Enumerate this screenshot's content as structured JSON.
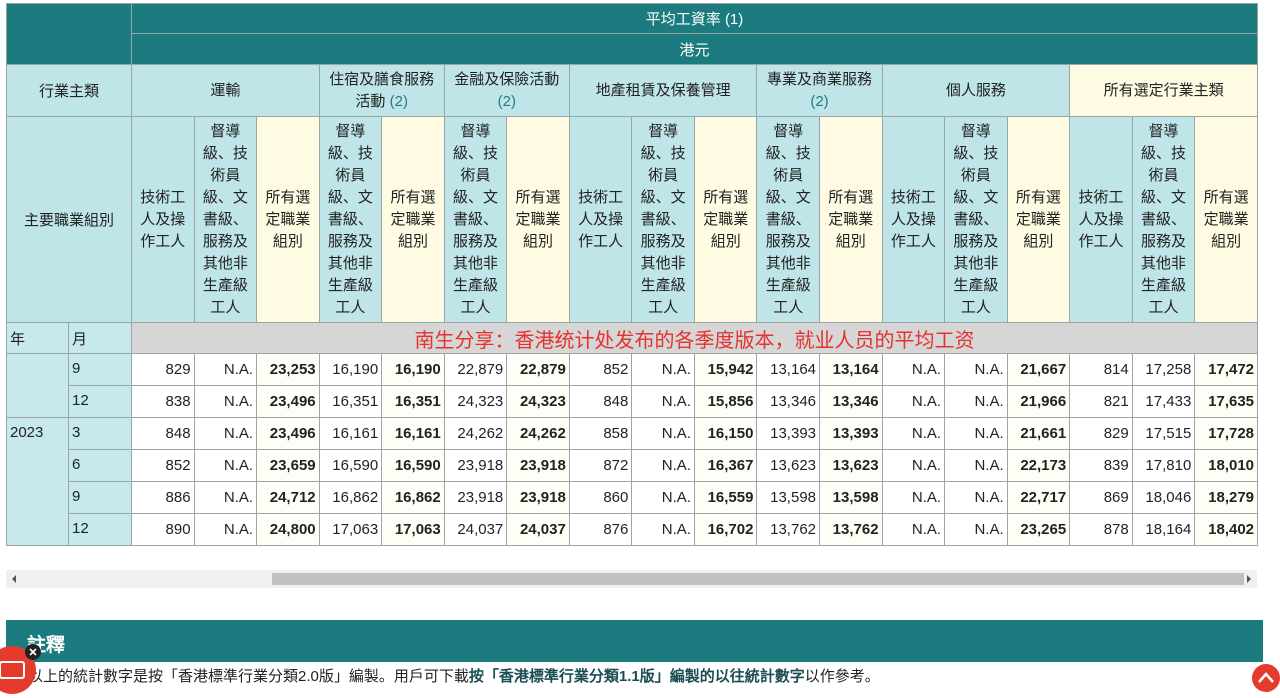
{
  "table": {
    "title": "平均工資率",
    "title_note": "(1)",
    "unit": "港元",
    "corner_label": "行業主類",
    "row_label": "主要職業組別",
    "year_label": "年",
    "month_label": "月",
    "banner": "南生分享：香港统计处发布的各季度版本，就业人员的平均工资",
    "industries": [
      {
        "name": "運輸",
        "columns": [
          "技術工人及操作工人",
          "督導級、技術員級、文書級、服務及其他非生產級工人",
          "所有選定職業組別"
        ]
      },
      {
        "name": "住宿及膳食服務活動",
        "note": "(2)",
        "columns": [
          "督導級、技術員級、文書級、服務及其他非生產級工人",
          "所有選定職業組別"
        ]
      },
      {
        "name": "金融及保險活動",
        "note": "(2)",
        "columns": [
          "督導級、技術員級、文書級、服務及其他非生產級工人",
          "所有選定職業組別"
        ]
      },
      {
        "name": "地產租賃及保養管理",
        "columns": [
          "技術工人及操作工人",
          "督導級、技術員級、文書級、服務及其他非生產級工人",
          "所有選定職業組別"
        ]
      },
      {
        "name": "專業及商業服務",
        "note": "(2)",
        "columns": [
          "督導級、技術員級、文書級、服務及其他非生產級工人",
          "所有選定職業組別"
        ]
      },
      {
        "name": "個人服務",
        "columns": [
          "技術工人及操作工人",
          "督導級、技術員級、文書級、服務及其他非生產級工人",
          "所有選定職業組別"
        ]
      },
      {
        "name": "所有選定行業主類",
        "columns": [
          "技術工人及操作工人",
          "督導級、技術員級、文書級、服務及其他非生產級工人",
          "所有選定職業組別"
        ]
      }
    ],
    "years": [
      {
        "months": [
          {
            "month": "9",
            "values": [
              "829",
              "N.A.",
              "23,253",
              "16,190",
              "16,190",
              "22,879",
              "22,879",
              "852",
              "N.A.",
              "15,942",
              "13,164",
              "13,164",
              "N.A.",
              "N.A.",
              "21,667",
              "814",
              "17,258",
              "17,472"
            ]
          },
          {
            "month": "12",
            "values": [
              "838",
              "N.A.",
              "23,496",
              "16,351",
              "16,351",
              "24,323",
              "24,323",
              "848",
              "N.A.",
              "15,856",
              "13,346",
              "13,346",
              "N.A.",
              "N.A.",
              "21,966",
              "821",
              "17,433",
              "17,635"
            ]
          }
        ]
      },
      {
        "year": "2023",
        "months": [
          {
            "month": "3",
            "values": [
              "848",
              "N.A.",
              "23,496",
              "16,161",
              "16,161",
              "24,262",
              "24,262",
              "858",
              "N.A.",
              "16,150",
              "13,393",
              "13,393",
              "N.A.",
              "N.A.",
              "21,661",
              "829",
              "17,515",
              "17,728"
            ]
          },
          {
            "month": "6",
            "values": [
              "852",
              "N.A.",
              "23,659",
              "16,590",
              "16,590",
              "23,918",
              "23,918",
              "872",
              "N.A.",
              "16,367",
              "13,623",
              "13,623",
              "N.A.",
              "N.A.",
              "22,173",
              "839",
              "17,810",
              "18,010"
            ]
          },
          {
            "month": "9",
            "values": [
              "886",
              "N.A.",
              "24,712",
              "16,862",
              "16,862",
              "23,918",
              "23,918",
              "860",
              "N.A.",
              "16,559",
              "13,598",
              "13,598",
              "N.A.",
              "N.A.",
              "22,717",
              "869",
              "18,046",
              "18,279"
            ]
          },
          {
            "month": "12",
            "values": [
              "890",
              "N.A.",
              "24,800",
              "17,063",
              "17,063",
              "24,037",
              "24,037",
              "876",
              "N.A.",
              "16,702",
              "13,762",
              "13,762",
              "N.A.",
              "N.A.",
              "23,265",
              "878",
              "18,164",
              "18,402"
            ]
          }
        ]
      }
    ]
  },
  "notes": {
    "title": "註釋",
    "text_before": "以上的統計數字是按「香港標準行業分類2.0版」編製。用戶可下載",
    "link": "按「香港標準行業分類1.1版」編製的以往統計數字",
    "text_after": "以作參考。"
  }
}
